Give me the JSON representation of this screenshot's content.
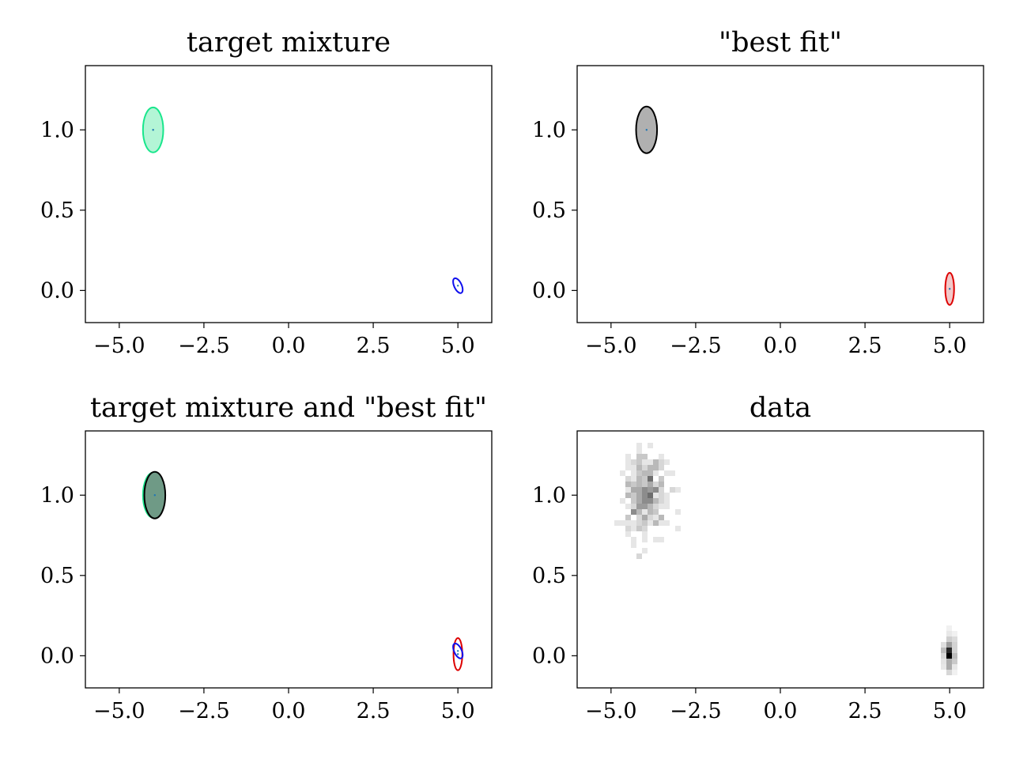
{
  "chart_data": [
    {
      "type": "scatter",
      "title": "target mixture",
      "xlim": [
        -6,
        6
      ],
      "ylim": [
        -0.2,
        1.4
      ],
      "xticks": [
        -5,
        -2.5,
        0,
        2.5,
        5
      ],
      "xtick_labels": [
        "−5.0",
        "−2.5",
        "0.0",
        "2.5",
        "5.0"
      ],
      "yticks": [
        0,
        0.5,
        1
      ],
      "ytick_labels": [
        "0.0",
        "0.5",
        "1.0"
      ],
      "grid": false,
      "series": [
        {
          "mean": [
            -4.0,
            1.0
          ],
          "width": 0.6,
          "height": 0.28,
          "angle": 0,
          "edge": "#19e68c",
          "face": "#b3f5d6"
        },
        {
          "mean": [
            5.0,
            0.03
          ],
          "width": 0.22,
          "height": 0.1,
          "angle": -25,
          "edge": "#1010ee",
          "face": "none"
        }
      ]
    },
    {
      "type": "scatter",
      "title": "\"best fit\"",
      "xlim": [
        -6,
        6
      ],
      "ylim": [
        -0.2,
        1.4
      ],
      "xticks": [
        -5,
        -2.5,
        0,
        2.5,
        5
      ],
      "xtick_labels": [
        "−5.0",
        "−2.5",
        "0.0",
        "2.5",
        "5.0"
      ],
      "yticks": [
        0,
        0.5,
        1
      ],
      "ytick_labels": [
        "0.0",
        "0.5",
        "1.0"
      ],
      "grid": false,
      "series": [
        {
          "mean": [
            -3.95,
            1.0
          ],
          "width": 0.62,
          "height": 0.29,
          "angle": 0,
          "edge": "#000000",
          "face": "#b0b0b0"
        },
        {
          "mean": [
            5.0,
            0.01
          ],
          "width": 0.26,
          "height": 0.2,
          "angle": 0,
          "edge": "#dd0000",
          "face": "#f2c8c8"
        }
      ]
    },
    {
      "type": "scatter",
      "title": "target mixture and \"best fit\"",
      "xlim": [
        -6,
        6
      ],
      "ylim": [
        -0.2,
        1.4
      ],
      "xticks": [
        -5,
        -2.5,
        0,
        2.5,
        5
      ],
      "xtick_labels": [
        "−5.0",
        "−2.5",
        "0.0",
        "2.5",
        "5.0"
      ],
      "yticks": [
        0,
        0.5,
        1
      ],
      "ytick_labels": [
        "0.0",
        "0.5",
        "1.0"
      ],
      "grid": false,
      "series": [
        {
          "mean": [
            -4.0,
            1.0
          ],
          "width": 0.6,
          "height": 0.28,
          "angle": 0,
          "edge": "#19e68c",
          "face": "#7fc7a5"
        },
        {
          "mean": [
            -3.95,
            1.0
          ],
          "width": 0.62,
          "height": 0.29,
          "angle": 0,
          "edge": "#000000",
          "face": "#6f9a86"
        },
        {
          "mean": [
            5.0,
            0.01
          ],
          "width": 0.26,
          "height": 0.2,
          "angle": 0,
          "edge": "#dd0000",
          "face": "none"
        },
        {
          "mean": [
            5.0,
            0.03
          ],
          "width": 0.22,
          "height": 0.1,
          "angle": -25,
          "edge": "#1010ee",
          "face": "none"
        }
      ]
    },
    {
      "type": "heatmap",
      "title": "data",
      "xlim": [
        -6,
        6
      ],
      "ylim": [
        -0.2,
        1.4
      ],
      "xticks": [
        -5,
        -2.5,
        0,
        2.5,
        5
      ],
      "xtick_labels": [
        "−5.0",
        "−2.5",
        "0.0",
        "2.5",
        "5.0"
      ],
      "yticks": [
        0,
        0.5,
        1
      ],
      "ytick_labels": [
        "0.0",
        "0.5",
        "1.0"
      ],
      "grid": false,
      "clusters": [
        {
          "center": [
            -4.0,
            1.0
          ],
          "sx": 0.3,
          "sy": 0.13,
          "count": 300,
          "seed": 7,
          "max_intensity": 0.55
        },
        {
          "center": [
            5.0,
            0.01
          ],
          "sx": 0.08,
          "sy": 0.05,
          "count": 260,
          "seed": 13,
          "max_intensity": 1.0
        }
      ],
      "colormap": "Greys"
    }
  ]
}
